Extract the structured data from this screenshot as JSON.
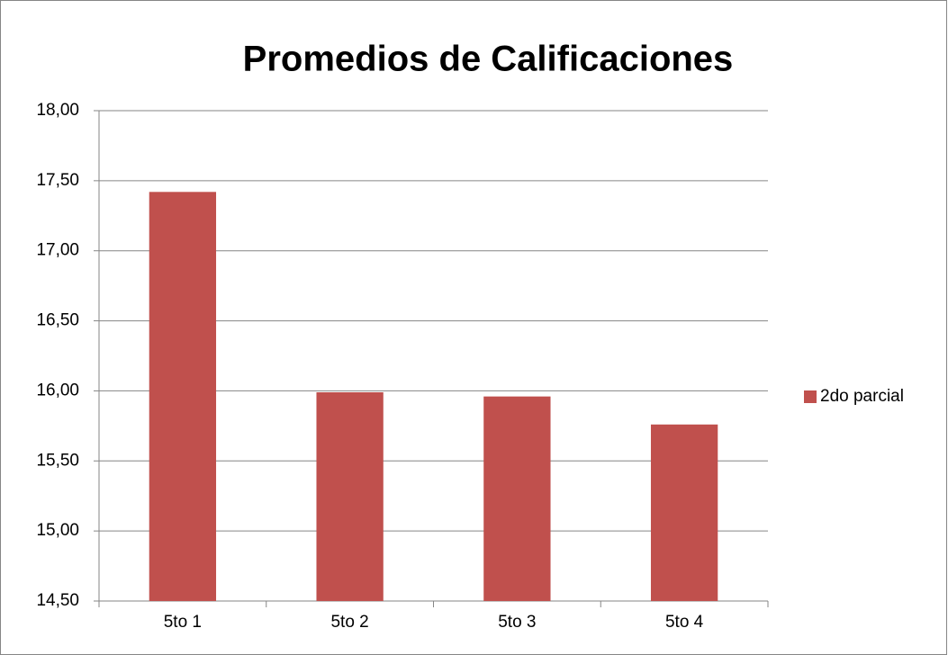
{
  "chart_data": {
    "type": "bar",
    "title": "Promedios de Calificaciones",
    "categories": [
      "5to 1",
      "5to 2",
      "5to 3",
      "5to 4"
    ],
    "series": [
      {
        "name": "2do parcial",
        "color": "#c0504d",
        "values": [
          17.42,
          15.99,
          15.96,
          15.76
        ]
      }
    ],
    "ylim": [
      14.5,
      18
    ],
    "yticks": [
      {
        "value": 14.5,
        "label": "14,50"
      },
      {
        "value": 15,
        "label": "15,00"
      },
      {
        "value": 15.5,
        "label": "15,50"
      },
      {
        "value": 16,
        "label": "16,00"
      },
      {
        "value": 16.5,
        "label": "16,50"
      },
      {
        "value": 17,
        "label": "17,00"
      },
      {
        "value": 17.5,
        "label": "17,50"
      },
      {
        "value": 18,
        "label": "18,00"
      }
    ],
    "grid": true,
    "legend": "right"
  }
}
